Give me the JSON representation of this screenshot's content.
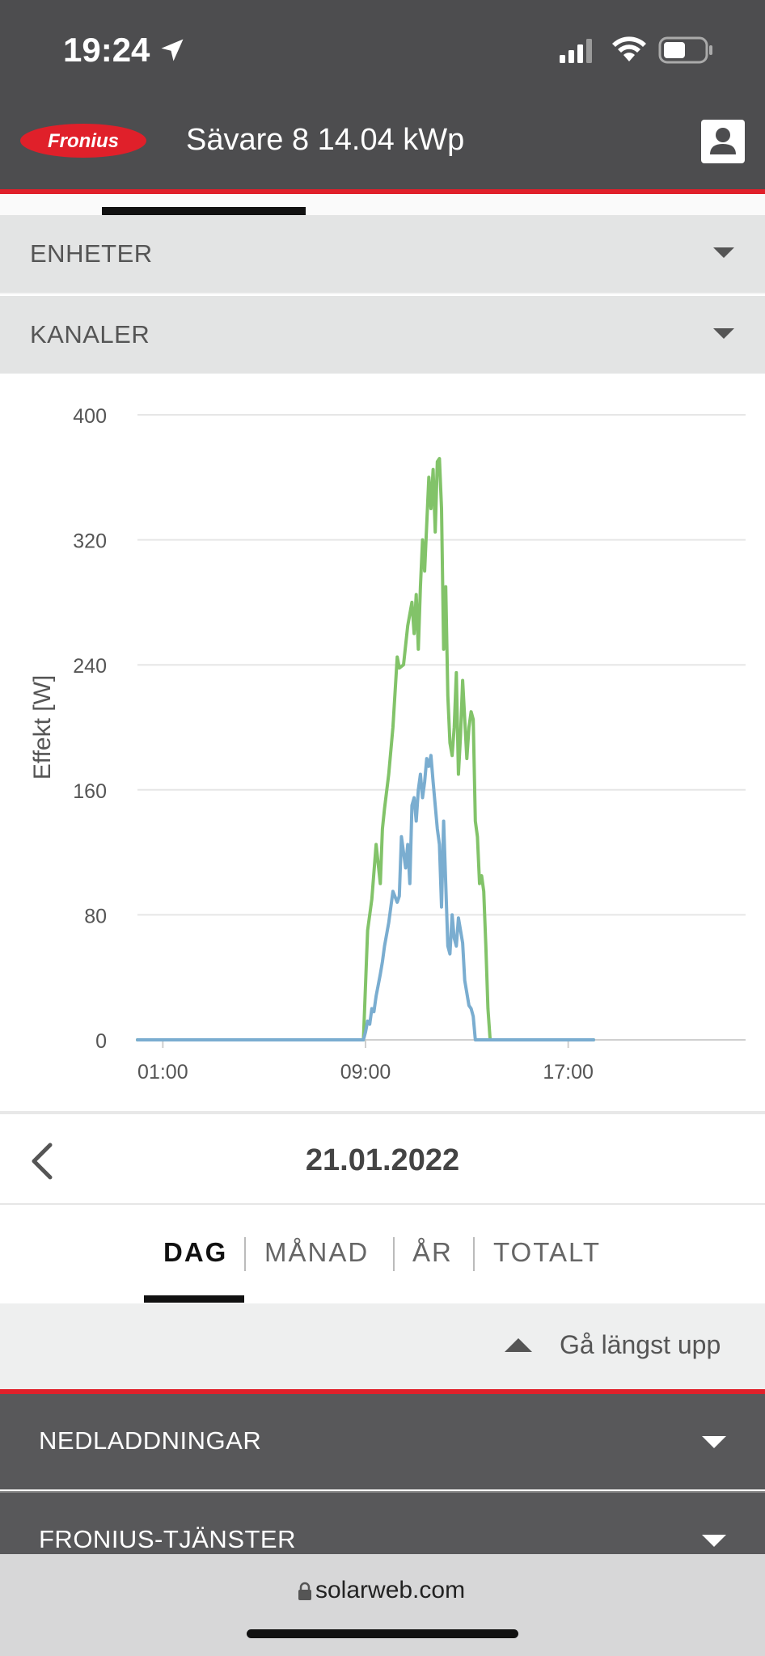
{
  "status": {
    "time": "19:24"
  },
  "header": {
    "brand": "Fronius",
    "title": "Sävare 8 14.04 kWp"
  },
  "accordions": [
    {
      "label": "ENHETER"
    },
    {
      "label": "KANALER"
    }
  ],
  "chart_data": {
    "type": "line",
    "ylabel": "Effekt [W]",
    "xlabel": "",
    "ylim": [
      0,
      400
    ],
    "yticks": [
      "0",
      "80",
      "160",
      "240",
      "320",
      "400"
    ],
    "xticks": [
      "01:00",
      "09:00",
      "17:00"
    ],
    "xlim": [
      "00:00",
      "24:00"
    ],
    "grid": true,
    "colors": {
      "green": "#82c369",
      "blue": "#7aadd0"
    },
    "series": [
      {
        "color": "green",
        "x": [
          "00:00",
          "08:55",
          "09:05",
          "09:15",
          "09:25",
          "09:35",
          "09:40",
          "09:45",
          "09:55",
          "10:05",
          "10:15",
          "10:20",
          "10:30",
          "10:40",
          "10:50",
          "10:55",
          "11:00",
          "11:05",
          "11:10",
          "11:15",
          "11:20",
          "11:25",
          "11:30",
          "11:35",
          "11:40",
          "11:45",
          "11:50",
          "11:55",
          "12:00",
          "12:05",
          "12:10",
          "12:15",
          "12:20",
          "12:25",
          "12:30",
          "12:35",
          "12:40",
          "12:45",
          "12:50",
          "13:00",
          "13:05",
          "13:10",
          "13:15",
          "13:20",
          "13:25",
          "13:30",
          "13:35",
          "13:40",
          "13:45",
          "13:50",
          "13:55",
          "14:05",
          "14:10",
          "14:15",
          "14:20",
          "14:25",
          "14:30",
          "14:35",
          "14:40",
          "14:45",
          "14:50",
          "14:55",
          "15:00",
          "15:05",
          "15:15",
          "15:25",
          "15:30",
          "15:35",
          "15:45",
          "15:50",
          "18:00"
        ],
        "y": [
          0,
          0,
          70,
          90,
          125,
          100,
          135,
          148,
          170,
          200,
          245,
          238,
          240,
          265,
          280,
          260,
          285,
          250,
          290,
          320,
          300,
          330,
          360,
          340,
          365,
          325,
          370,
          372,
          340,
          250,
          290,
          220,
          190,
          182,
          200,
          235,
          170,
          195,
          230,
          180,
          200,
          210,
          205,
          140,
          130,
          100,
          105,
          95,
          60,
          20,
          0,
          0,
          0,
          0,
          0,
          0,
          0,
          0,
          0,
          0,
          0,
          0,
          0,
          0,
          0,
          0,
          0,
          0,
          0,
          0,
          0
        ]
      },
      {
        "color": "blue",
        "x": [
          "00:00",
          "08:55",
          "09:00",
          "09:05",
          "09:10",
          "09:15",
          "09:20",
          "09:25",
          "09:30",
          "09:35",
          "09:40",
          "09:45",
          "09:55",
          "10:05",
          "10:15",
          "10:20",
          "10:25",
          "10:35",
          "10:40",
          "10:45",
          "10:50",
          "10:55",
          "11:00",
          "11:05",
          "11:10",
          "11:15",
          "11:20",
          "11:25",
          "11:30",
          "11:35",
          "11:40",
          "11:45",
          "11:50",
          "11:55",
          "12:00",
          "12:05",
          "12:10",
          "12:15",
          "12:20",
          "12:25",
          "12:30",
          "12:35",
          "12:40",
          "12:45",
          "12:50",
          "12:55",
          "13:00",
          "13:05",
          "13:10",
          "13:15",
          "13:20",
          "13:25",
          "13:30",
          "13:35",
          "13:40",
          "13:45",
          "13:50",
          "13:55",
          "14:00",
          "14:05",
          "18:00"
        ],
        "y": [
          0,
          0,
          5,
          12,
          10,
          20,
          18,
          28,
          35,
          42,
          50,
          60,
          75,
          95,
          88,
          92,
          130,
          110,
          125,
          100,
          150,
          155,
          140,
          160,
          170,
          155,
          165,
          180,
          175,
          182,
          165,
          150,
          135,
          125,
          85,
          140,
          100,
          60,
          55,
          80,
          65,
          60,
          78,
          70,
          62,
          38,
          30,
          22,
          20,
          15,
          0,
          0,
          0,
          0,
          0,
          0,
          0,
          0,
          0,
          0,
          0
        ]
      }
    ]
  },
  "date": {
    "value": "21.01.2022"
  },
  "periods": {
    "day": "DAG",
    "month": "MÅNAD",
    "year": "ÅR",
    "total": "TOTALT"
  },
  "scroll_top": {
    "label": "Gå längst upp"
  },
  "footer": [
    {
      "label": "NEDLADDNINGAR"
    },
    {
      "label": "FRONIUS-TJÄNSTER"
    }
  ],
  "browser": {
    "url": "solarweb.com"
  }
}
